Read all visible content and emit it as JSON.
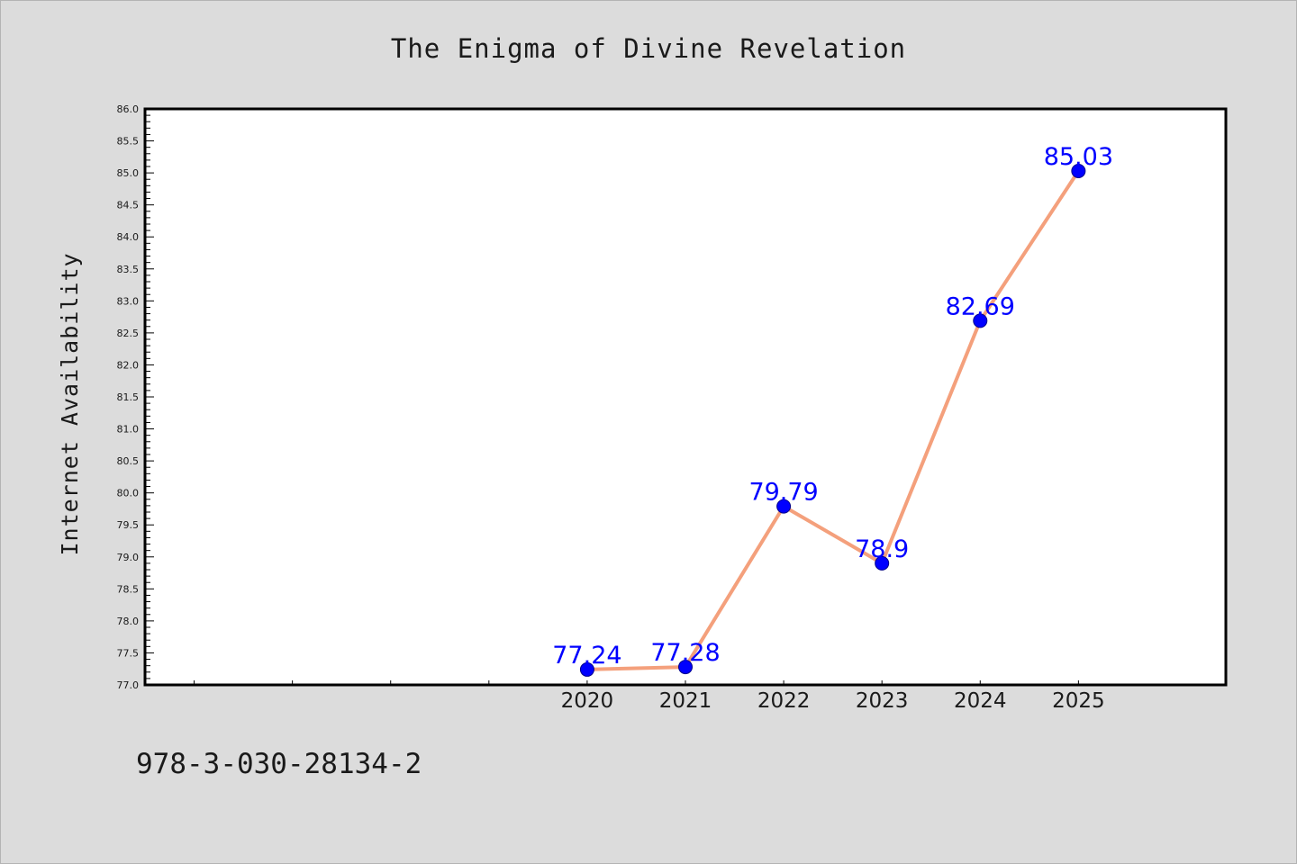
{
  "footer_text": "978-3-030-28134-2",
  "chart_data": {
    "type": "line",
    "title": "The Enigma of Divine Revelation",
    "xlabel": "",
    "ylabel": "Internet Availability",
    "xlim": [
      2015.5,
      2026.5
    ],
    "ylim": [
      77.0,
      86.0
    ],
    "y_major_step": 0.5,
    "y_minor_step": 0.1,
    "x_ticks": [
      2016,
      2017,
      2018,
      2019,
      2020,
      2021,
      2022,
      2023,
      2024,
      2025
    ],
    "x_tick_labels": [
      "",
      "",
      "",
      "",
      "2020",
      "2021",
      "2022",
      "2023",
      "2024",
      "2025"
    ],
    "x": [
      2020,
      2021,
      2022,
      2023,
      2024,
      2025
    ],
    "series": [
      {
        "values": [
          77.24,
          77.28,
          79.79,
          78.9,
          82.69,
          85.03
        ],
        "data_labels": [
          "77.24",
          "77.28",
          "79.79",
          "78.9",
          "82.69",
          "85.03"
        ],
        "line_color": "#f4a07c",
        "marker_color": "#0000ff",
        "marker_edge_color": "#00008b"
      }
    ],
    "grid": false,
    "legend": "none",
    "background_color": "#ffffff",
    "figure_background_color": "#dcdcdc"
  }
}
